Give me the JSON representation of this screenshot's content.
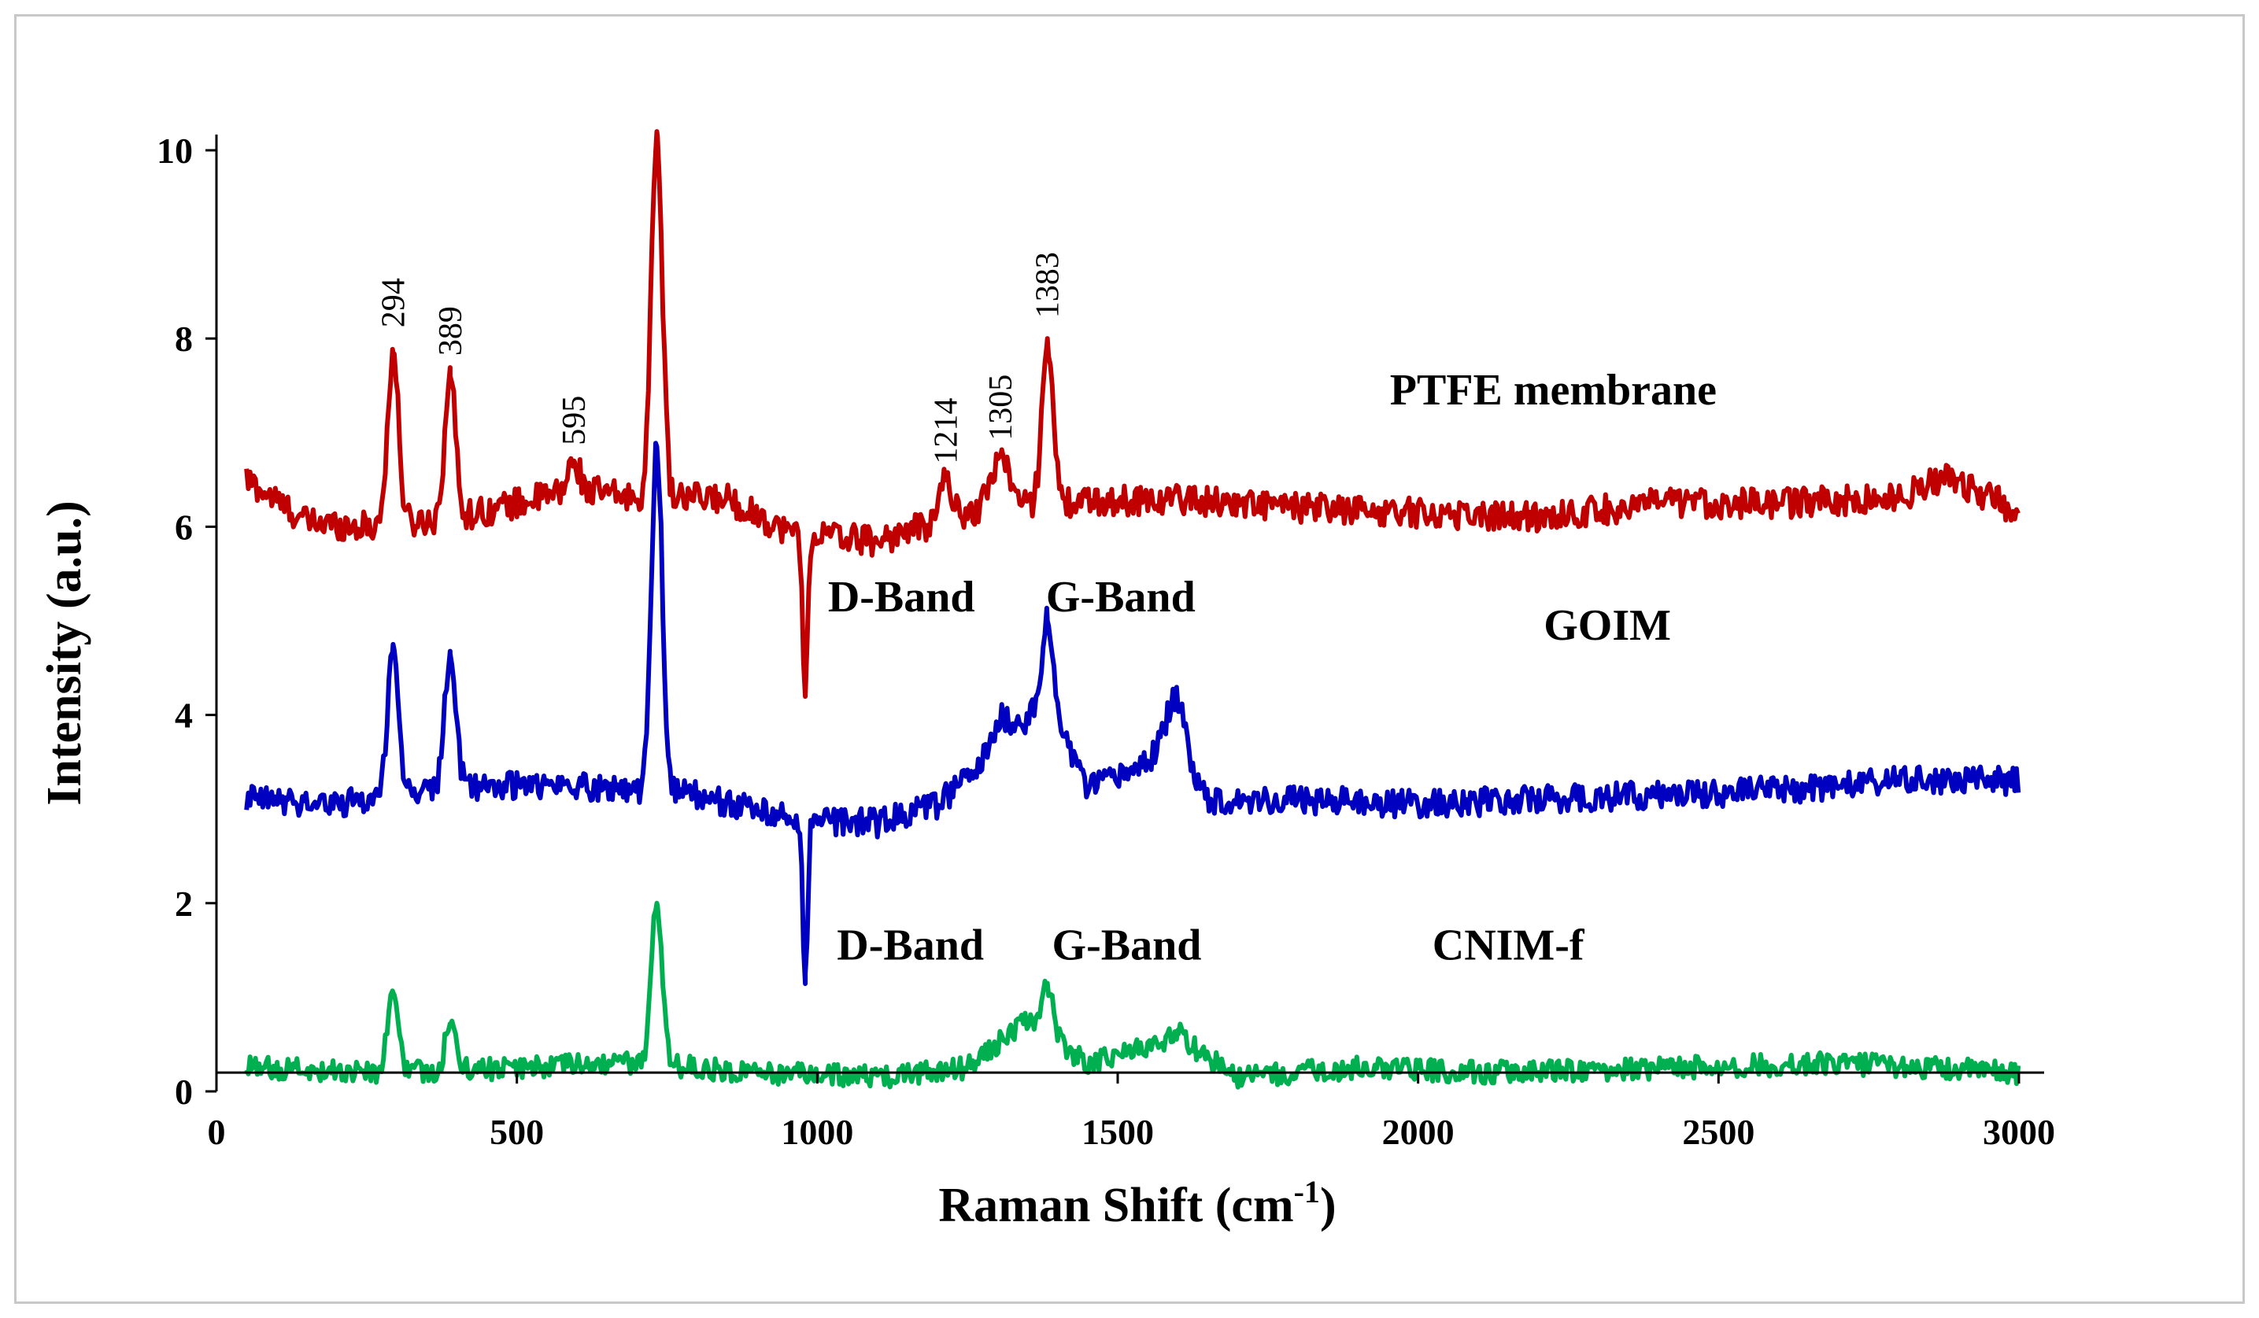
{
  "chart_data": {
    "type": "line",
    "title": "",
    "xlabel": "Raman Shift (cm",
    "xlabel_superscript": "-1",
    "xlabel_suffix": ")",
    "ylabel": "Intensity (a.u.)",
    "xlim": [
      0,
      3000
    ],
    "ylim": [
      0,
      10
    ],
    "xticks": [
      "0",
      "500",
      "1000",
      "1500",
      "2000",
      "2500",
      "3000"
    ],
    "yticks": [
      "0",
      "2",
      "4",
      "6",
      "8",
      "10"
    ],
    "grid": false,
    "series": [
      {
        "name": "PTFE membrane",
        "color": "#c00000",
        "baseline": [
          [
            50,
            6.5
          ],
          [
            150,
            6.05
          ],
          [
            250,
            6.0
          ],
          [
            400,
            6.1
          ],
          [
            600,
            6.4
          ],
          [
            700,
            6.3
          ],
          [
            850,
            6.3
          ],
          [
            950,
            5.95
          ],
          [
            1100,
            5.85
          ],
          [
            1250,
            6.15
          ],
          [
            1400,
            6.25
          ],
          [
            1600,
            6.3
          ],
          [
            1800,
            6.2
          ],
          [
            2000,
            6.15
          ],
          [
            2200,
            6.1
          ],
          [
            2400,
            6.25
          ],
          [
            2600,
            6.25
          ],
          [
            2800,
            6.3
          ],
          [
            2880,
            6.55
          ],
          [
            3000,
            6.15
          ]
        ],
        "peaks": [
          {
            "x": 294,
            "y": 7.85
          },
          {
            "x": 389,
            "y": 7.6
          },
          {
            "x": 595,
            "y": 6.7
          },
          {
            "x": 733,
            "y": 10.2
          },
          {
            "x": 980,
            "y": 4.2
          },
          {
            "x": 1214,
            "y": 6.55
          },
          {
            "x": 1305,
            "y": 6.75
          },
          {
            "x": 1383,
            "y": 8.0
          }
        ],
        "noise": 0.16
      },
      {
        "name": "GOIM",
        "color": "#0000c0",
        "baseline": [
          [
            50,
            3.1
          ],
          [
            200,
            3.05
          ],
          [
            400,
            3.25
          ],
          [
            600,
            3.25
          ],
          [
            800,
            3.15
          ],
          [
            950,
            2.9
          ],
          [
            1100,
            2.85
          ],
          [
            1200,
            3.05
          ],
          [
            1300,
            3.6
          ],
          [
            1383,
            4.2
          ],
          [
            1450,
            3.2
          ],
          [
            1520,
            3.4
          ],
          [
            1600,
            3.7
          ],
          [
            1650,
            3.1
          ],
          [
            1800,
            3.1
          ],
          [
            2000,
            3.05
          ],
          [
            2200,
            3.1
          ],
          [
            2400,
            3.15
          ],
          [
            2600,
            3.2
          ],
          [
            2800,
            3.3
          ],
          [
            3000,
            3.3
          ]
        ],
        "peaks": [
          {
            "x": 294,
            "y": 4.75
          },
          {
            "x": 389,
            "y": 4.65
          },
          {
            "x": 733,
            "y": 6.85
          },
          {
            "x": 980,
            "y": 1.25
          },
          {
            "x": 1305,
            "y": 3.95
          },
          {
            "x": 1383,
            "y": 5.0
          },
          {
            "x": 1595,
            "y": 4.15
          }
        ],
        "noise": 0.15
      },
      {
        "name": "CNIM-f",
        "color": "#00b050",
        "baseline": [
          [
            50,
            0.25
          ],
          [
            300,
            0.2
          ],
          [
            500,
            0.25
          ],
          [
            700,
            0.3
          ],
          [
            900,
            0.2
          ],
          [
            1100,
            0.15
          ],
          [
            1250,
            0.25
          ],
          [
            1350,
            0.75
          ],
          [
            1450,
            0.3
          ],
          [
            1600,
            0.55
          ],
          [
            1700,
            0.15
          ],
          [
            1900,
            0.25
          ],
          [
            2100,
            0.2
          ],
          [
            2400,
            0.25
          ],
          [
            2700,
            0.3
          ],
          [
            3000,
            0.2
          ]
        ],
        "peaks": [
          {
            "x": 294,
            "y": 1.05
          },
          {
            "x": 389,
            "y": 0.7
          },
          {
            "x": 733,
            "y": 2.0
          },
          {
            "x": 1383,
            "y": 1.15
          },
          {
            "x": 1600,
            "y": 0.65
          }
        ],
        "noise": 0.12
      }
    ],
    "annotations": {
      "peak_labels": [
        {
          "text": "294",
          "x": 294,
          "y": 8.05
        },
        {
          "text": "389",
          "x": 389,
          "y": 7.75
        },
        {
          "text": "595",
          "x": 595,
          "y": 6.8
        },
        {
          "text": "1214",
          "x": 1214,
          "y": 6.6
        },
        {
          "text": "1305",
          "x": 1305,
          "y": 6.85
        },
        {
          "text": "1383",
          "x": 1383,
          "y": 8.15
        }
      ],
      "series_labels": [
        {
          "text": "PTFE membrane",
          "x": 2225,
          "y": 7.3
        },
        {
          "text": "GOIM",
          "x": 2315,
          "y": 4.8
        },
        {
          "text": "D-Band",
          "x": 1140,
          "y": 5.1
        },
        {
          "text": "G-Band",
          "x": 1505,
          "y": 5.1
        },
        {
          "text": "CNIM-f",
          "x": 2150,
          "y": 1.4
        },
        {
          "text": "D-Band",
          "x": 1155,
          "y": 1.4
        },
        {
          "text": "G-Band",
          "x": 1515,
          "y": 1.4
        }
      ]
    },
    "x_axis_at_y": 0.2
  }
}
